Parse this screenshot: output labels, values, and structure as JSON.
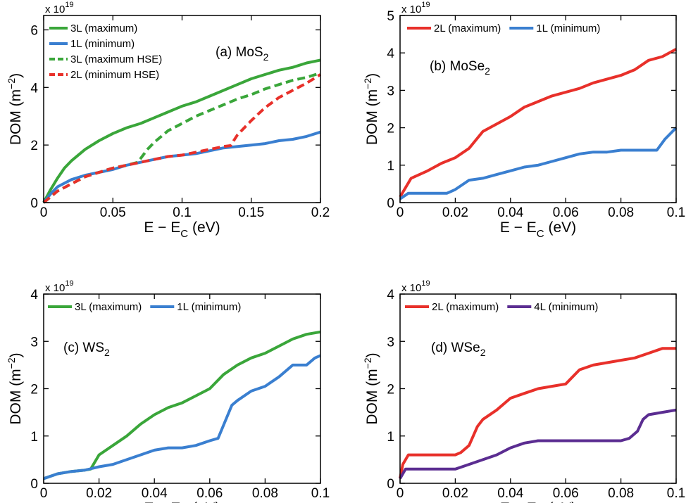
{
  "chart_data": [
    {
      "id": "a",
      "type": "line",
      "title": "(a) MoS",
      "title_sub": "2",
      "xlabel": "E − E",
      "xlabel_sub": "C",
      "xlabel_unit": " (eV)",
      "ylabel": "DOM (m",
      "ylabel_sup": "−2",
      "ylabel_close": ")",
      "multiplier": "x 10",
      "multiplier_exp": "19",
      "xlim": [
        0,
        0.2
      ],
      "ylim": [
        0,
        6.5
      ],
      "xticks": [
        0,
        0.05,
        0.1,
        0.15,
        0.2
      ],
      "xtick_labels": [
        "0",
        "0.05",
        "0.1",
        "0.15",
        "0.2"
      ],
      "yticks": [
        0,
        2,
        4,
        6
      ],
      "ytick_labels": [
        "0",
        "2",
        "4",
        "6"
      ],
      "legend_position": "top-left",
      "series": [
        {
          "name": "3L (maximum)",
          "color": "#3aa63a",
          "dash": "solid",
          "x": [
            0,
            0.005,
            0.01,
            0.015,
            0.02,
            0.03,
            0.04,
            0.05,
            0.06,
            0.07,
            0.08,
            0.09,
            0.1,
            0.11,
            0.12,
            0.13,
            0.14,
            0.15,
            0.16,
            0.17,
            0.18,
            0.19,
            0.2
          ],
          "y": [
            0,
            0.45,
            0.85,
            1.2,
            1.45,
            1.85,
            2.15,
            2.4,
            2.6,
            2.75,
            2.95,
            3.15,
            3.35,
            3.5,
            3.7,
            3.9,
            4.1,
            4.3,
            4.45,
            4.6,
            4.7,
            4.85,
            4.95
          ]
        },
        {
          "name": "1L (minimum)",
          "color": "#3a7fd0",
          "dash": "solid",
          "x": [
            0,
            0.005,
            0.01,
            0.02,
            0.03,
            0.04,
            0.05,
            0.06,
            0.07,
            0.08,
            0.09,
            0.1,
            0.11,
            0.12,
            0.13,
            0.14,
            0.15,
            0.16,
            0.17,
            0.18,
            0.19,
            0.2
          ],
          "y": [
            0,
            0.3,
            0.55,
            0.8,
            0.95,
            1.05,
            1.15,
            1.3,
            1.4,
            1.5,
            1.6,
            1.65,
            1.7,
            1.8,
            1.9,
            1.95,
            2.0,
            2.05,
            2.15,
            2.2,
            2.3,
            2.45
          ]
        },
        {
          "name": "3L (maximum HSE)",
          "color": "#3aa63a",
          "dash": "dashed",
          "x": [
            0,
            0.01,
            0.02,
            0.03,
            0.04,
            0.05,
            0.06,
            0.068,
            0.075,
            0.08,
            0.09,
            0.1,
            0.11,
            0.12,
            0.13,
            0.14,
            0.15,
            0.16,
            0.17,
            0.18,
            0.19,
            0.2
          ],
          "y": [
            0,
            0.4,
            0.65,
            0.9,
            1.05,
            1.2,
            1.3,
            1.4,
            1.85,
            2.1,
            2.5,
            2.75,
            3.0,
            3.2,
            3.4,
            3.6,
            3.75,
            3.95,
            4.1,
            4.25,
            4.35,
            4.5
          ]
        },
        {
          "name": "2L (minimum HSE)",
          "color": "#e8302a",
          "dash": "dashed",
          "x": [
            0,
            0.01,
            0.02,
            0.03,
            0.04,
            0.05,
            0.06,
            0.07,
            0.08,
            0.09,
            0.1,
            0.11,
            0.12,
            0.13,
            0.135,
            0.14,
            0.15,
            0.16,
            0.17,
            0.18,
            0.19,
            0.2
          ],
          "y": [
            0,
            0.4,
            0.65,
            0.9,
            1.05,
            1.2,
            1.3,
            1.4,
            1.5,
            1.6,
            1.65,
            1.75,
            1.85,
            1.95,
            1.98,
            2.35,
            2.85,
            3.3,
            3.65,
            3.9,
            4.15,
            4.45
          ]
        }
      ]
    },
    {
      "id": "b",
      "type": "line",
      "title": "(b) MoSe",
      "title_sub": "2",
      "xlabel": "E − E",
      "xlabel_sub": "C",
      "xlabel_unit": " (eV)",
      "ylabel": "DOM (m",
      "ylabel_sup": "−2",
      "ylabel_close": ")",
      "multiplier": "x 10",
      "multiplier_exp": "19",
      "xlim": [
        0,
        0.1
      ],
      "ylim": [
        0,
        5
      ],
      "xticks": [
        0,
        0.02,
        0.04,
        0.06,
        0.08,
        0.1
      ],
      "xtick_labels": [
        "0",
        "0.02",
        "0.04",
        "0.06",
        "0.08",
        "0.1"
      ],
      "yticks": [
        0,
        1,
        2,
        3,
        4,
        5
      ],
      "ytick_labels": [
        "0",
        "1",
        "2",
        "3",
        "4",
        "5"
      ],
      "legend_position": "top",
      "series": [
        {
          "name": "2L (maximum)",
          "color": "#e8302a",
          "dash": "solid",
          "x": [
            0,
            0.002,
            0.004,
            0.01,
            0.015,
            0.02,
            0.025,
            0.03,
            0.035,
            0.04,
            0.045,
            0.05,
            0.055,
            0.06,
            0.065,
            0.07,
            0.075,
            0.08,
            0.085,
            0.09,
            0.095,
            0.1
          ],
          "y": [
            0.15,
            0.4,
            0.65,
            0.85,
            1.05,
            1.2,
            1.45,
            1.9,
            2.1,
            2.3,
            2.55,
            2.7,
            2.85,
            2.95,
            3.05,
            3.2,
            3.3,
            3.4,
            3.55,
            3.8,
            3.9,
            4.1
          ]
        },
        {
          "name": "1L (minimum)",
          "color": "#3a7fd0",
          "dash": "solid",
          "x": [
            0,
            0.003,
            0.01,
            0.017,
            0.02,
            0.025,
            0.03,
            0.035,
            0.04,
            0.045,
            0.05,
            0.055,
            0.06,
            0.065,
            0.07,
            0.075,
            0.08,
            0.085,
            0.09,
            0.093,
            0.096,
            0.1
          ],
          "y": [
            0.1,
            0.25,
            0.25,
            0.25,
            0.35,
            0.6,
            0.65,
            0.75,
            0.85,
            0.95,
            1.0,
            1.1,
            1.2,
            1.3,
            1.35,
            1.35,
            1.4,
            1.4,
            1.4,
            1.4,
            1.7,
            2.0
          ]
        }
      ]
    },
    {
      "id": "c",
      "type": "line",
      "title": "(c) WS",
      "title_sub": "2",
      "xlabel": "E − E",
      "xlabel_sub": "C",
      "xlabel_unit": " (eV)",
      "ylabel": "DOM (m",
      "ylabel_sup": "−2",
      "ylabel_close": ")",
      "multiplier": "x 10",
      "multiplier_exp": "19",
      "xlim": [
        0,
        0.1
      ],
      "ylim": [
        0,
        4
      ],
      "xticks": [
        0,
        0.02,
        0.04,
        0.06,
        0.08,
        0.1
      ],
      "xtick_labels": [
        "0",
        "0.02",
        "0.04",
        "0.06",
        "0.08",
        "0.1"
      ],
      "yticks": [
        0,
        1,
        2,
        3,
        4
      ],
      "ytick_labels": [
        "0",
        "1",
        "2",
        "3",
        "4"
      ],
      "legend_position": "top",
      "series": [
        {
          "name": "3L (maximum)",
          "color": "#3aa63a",
          "dash": "solid",
          "x": [
            0,
            0.005,
            0.01,
            0.015,
            0.017,
            0.02,
            0.025,
            0.03,
            0.035,
            0.04,
            0.045,
            0.05,
            0.055,
            0.06,
            0.065,
            0.07,
            0.075,
            0.08,
            0.085,
            0.09,
            0.095,
            0.1
          ],
          "y": [
            0.1,
            0.2,
            0.25,
            0.28,
            0.3,
            0.6,
            0.8,
            1.0,
            1.25,
            1.45,
            1.6,
            1.7,
            1.85,
            2.0,
            2.3,
            2.5,
            2.65,
            2.75,
            2.9,
            3.05,
            3.15,
            3.2
          ]
        },
        {
          "name": "1L (minimum)",
          "color": "#3a7fd0",
          "dash": "solid",
          "x": [
            0,
            0.005,
            0.01,
            0.015,
            0.02,
            0.025,
            0.03,
            0.035,
            0.04,
            0.045,
            0.05,
            0.055,
            0.06,
            0.063,
            0.068,
            0.07,
            0.075,
            0.08,
            0.085,
            0.09,
            0.095,
            0.098,
            0.1
          ],
          "y": [
            0.1,
            0.2,
            0.25,
            0.28,
            0.35,
            0.4,
            0.5,
            0.6,
            0.7,
            0.75,
            0.75,
            0.8,
            0.9,
            0.95,
            1.65,
            1.75,
            1.95,
            2.05,
            2.25,
            2.5,
            2.5,
            2.65,
            2.7
          ]
        }
      ]
    },
    {
      "id": "d",
      "type": "line",
      "title": "(d) WSe",
      "title_sub": "2",
      "xlabel": "E − E",
      "xlabel_sub": "C",
      "xlabel_unit": " (eV)",
      "ylabel": "DOM (m",
      "ylabel_sup": "−2",
      "ylabel_close": ")",
      "multiplier": "x 10",
      "multiplier_exp": "19",
      "xlim": [
        0,
        0.1
      ],
      "ylim": [
        0,
        4
      ],
      "xticks": [
        0,
        0.02,
        0.04,
        0.06,
        0.08,
        0.1
      ],
      "xtick_labels": [
        "0",
        "0.02",
        "0.04",
        "0.06",
        "0.08",
        "0.1"
      ],
      "yticks": [
        0,
        1,
        2,
        3,
        4
      ],
      "ytick_labels": [
        "0",
        "1",
        "2",
        "3",
        "4"
      ],
      "legend_position": "top",
      "series": [
        {
          "name": "2L (maximum)",
          "color": "#e8302a",
          "dash": "solid",
          "x": [
            0,
            0.001,
            0.003,
            0.01,
            0.02,
            0.022,
            0.025,
            0.028,
            0.03,
            0.035,
            0.04,
            0.045,
            0.05,
            0.055,
            0.06,
            0.065,
            0.07,
            0.075,
            0.08,
            0.085,
            0.09,
            0.095,
            0.1
          ],
          "y": [
            0.1,
            0.4,
            0.6,
            0.6,
            0.6,
            0.65,
            0.8,
            1.2,
            1.35,
            1.55,
            1.8,
            1.9,
            2.0,
            2.05,
            2.1,
            2.4,
            2.5,
            2.55,
            2.6,
            2.65,
            2.75,
            2.85,
            2.85
          ]
        },
        {
          "name": "4L (minimum)",
          "color": "#5b2d91",
          "dash": "solid",
          "x": [
            0,
            0.002,
            0.01,
            0.02,
            0.025,
            0.03,
            0.035,
            0.04,
            0.045,
            0.05,
            0.055,
            0.06,
            0.065,
            0.07,
            0.075,
            0.08,
            0.083,
            0.086,
            0.088,
            0.09,
            0.095,
            0.1
          ],
          "y": [
            0.1,
            0.3,
            0.3,
            0.3,
            0.4,
            0.5,
            0.6,
            0.75,
            0.85,
            0.9,
            0.9,
            0.9,
            0.9,
            0.9,
            0.9,
            0.9,
            0.95,
            1.1,
            1.35,
            1.45,
            1.5,
            1.55
          ]
        }
      ]
    }
  ]
}
